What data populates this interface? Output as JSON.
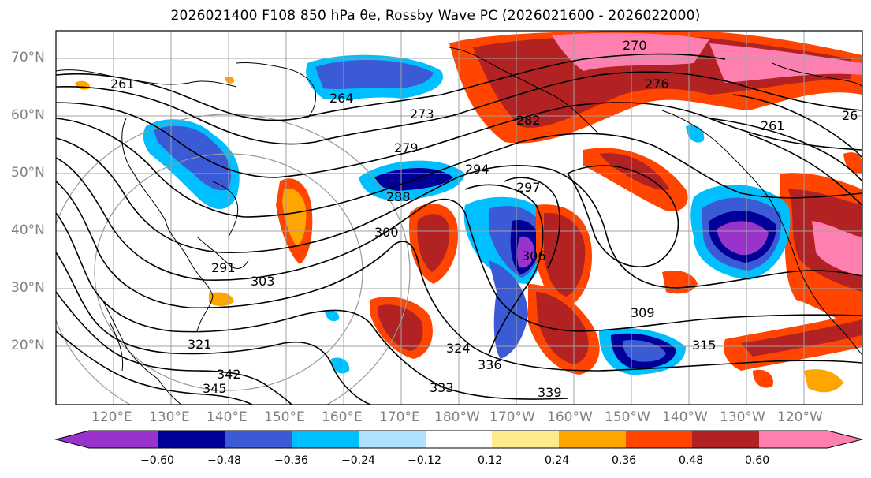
{
  "title": "2026021400 F108 850 hPa θe, Rossby Wave PC (2026021600 - 2026022000)",
  "map": {
    "lat_labels": [
      "70°N",
      "60°N",
      "50°N",
      "40°N",
      "30°N",
      "20°N"
    ],
    "lon_labels": [
      "120°E",
      "130°E",
      "140°E",
      "150°E",
      "160°E",
      "170°E",
      "180°W",
      "170°W",
      "160°W",
      "150°W",
      "140°W",
      "130°W",
      "120°W"
    ],
    "contour_labels": [
      {
        "text": "270"
      },
      {
        "text": "276"
      },
      {
        "text": "261"
      },
      {
        "text": "264"
      },
      {
        "text": "273"
      },
      {
        "text": "282"
      },
      {
        "text": "279"
      },
      {
        "text": "294"
      },
      {
        "text": "297"
      },
      {
        "text": "288"
      },
      {
        "text": "300"
      },
      {
        "text": "306"
      },
      {
        "text": "303"
      },
      {
        "text": "291"
      },
      {
        "text": "309"
      },
      {
        "text": "315"
      },
      {
        "text": "324"
      },
      {
        "text": "336"
      },
      {
        "text": "333"
      },
      {
        "text": "339"
      },
      {
        "text": "342"
      },
      {
        "text": "345"
      },
      {
        "text": "321"
      },
      {
        "text": "261"
      },
      {
        "text": "26"
      }
    ]
  },
  "colorbar": {
    "colors": [
      "#9933cc",
      "#000099",
      "#3b5bd6",
      "#00bfff",
      "#b0e2ff",
      "#ffffff",
      "#ffeb8a",
      "#ffa500",
      "#ff4500",
      "#b22222",
      "#ff80b0"
    ],
    "labels": [
      "−0.60",
      "−0.48",
      "−0.36",
      "−0.24",
      "−0.12",
      "0.12",
      "0.24",
      "0.36",
      "0.48",
      "0.60"
    ]
  }
}
